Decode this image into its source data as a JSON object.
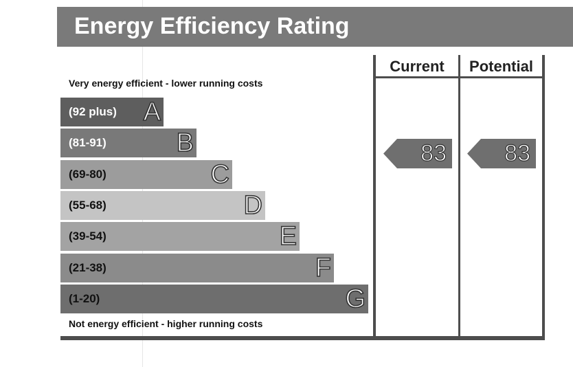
{
  "title": "Energy Efficiency Rating",
  "top_caption": "Very energy efficient - lower running costs",
  "bottom_caption": "Not energy efficient - higher running costs",
  "columns": {
    "current": "Current",
    "potential": "Potential"
  },
  "chart_data": {
    "type": "bar",
    "bands": [
      {
        "letter": "A",
        "range": "(92 plus)",
        "color": "#5e5e5e",
        "text_color": "#ffffff"
      },
      {
        "letter": "B",
        "range": "(81-91)",
        "color": "#797979",
        "text_color": "#ffffff"
      },
      {
        "letter": "C",
        "range": "(69-80)",
        "color": "#9c9c9c",
        "text_color": "#111111"
      },
      {
        "letter": "D",
        "range": "(55-68)",
        "color": "#c4c4c4",
        "text_color": "#111111"
      },
      {
        "letter": "E",
        "range": "(39-54)",
        "color": "#a3a3a3",
        "text_color": "#111111"
      },
      {
        "letter": "F",
        "range": "(21-38)",
        "color": "#8b8b8b",
        "text_color": "#111111"
      },
      {
        "letter": "G",
        "range": "(1-20)",
        "color": "#6e6e6e",
        "text_color": "#111111"
      }
    ],
    "current": 83,
    "potential": 83
  }
}
